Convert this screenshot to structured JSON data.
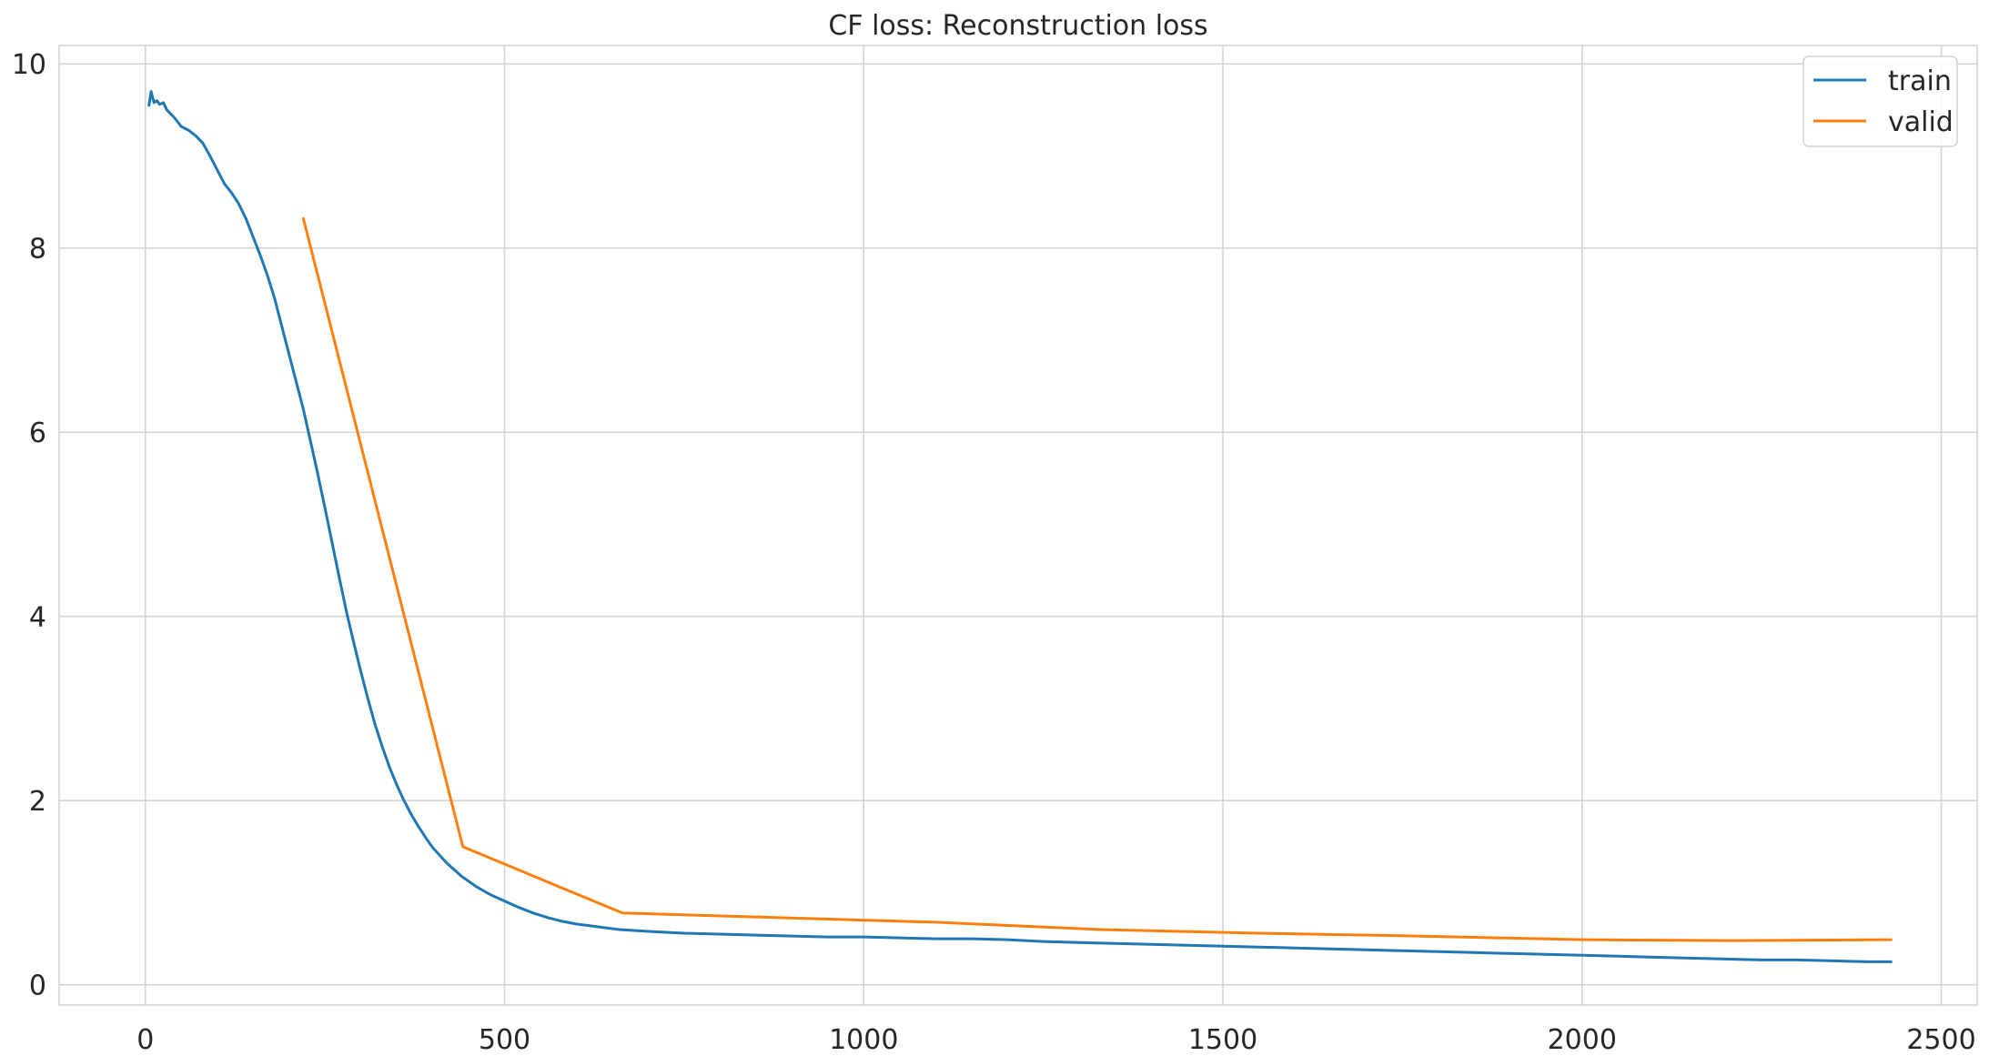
{
  "chart_data": {
    "type": "line",
    "title": "CF loss: Reconstruction loss",
    "xlabel": "",
    "ylabel": "",
    "xlim": [
      -120,
      2550
    ],
    "ylim": [
      -0.22,
      10.2
    ],
    "xticks": [
      0,
      500,
      1000,
      1500,
      2000,
      2500
    ],
    "yticks": [
      0,
      2,
      4,
      6,
      8,
      10
    ],
    "x_tick_labels": [
      "0",
      "500",
      "1000",
      "1500",
      "2000",
      "2500"
    ],
    "y_tick_labels": [
      "0",
      "2",
      "4",
      "6",
      "8",
      "10"
    ],
    "grid": true,
    "legend_position": "top-right",
    "series": [
      {
        "name": "train",
        "color": "#1f77b4",
        "x": [
          5,
          8,
          12,
          16,
          20,
          25,
          30,
          40,
          50,
          60,
          70,
          80,
          90,
          100,
          110,
          120,
          130,
          140,
          150,
          160,
          170,
          180,
          190,
          200,
          210,
          220,
          230,
          240,
          250,
          260,
          270,
          280,
          290,
          300,
          310,
          320,
          330,
          340,
          350,
          360,
          370,
          380,
          390,
          400,
          420,
          440,
          460,
          480,
          500,
          520,
          540,
          560,
          580,
          600,
          620,
          640,
          660,
          680,
          700,
          750,
          800,
          850,
          900,
          950,
          1000,
          1050,
          1100,
          1150,
          1200,
          1250,
          1300,
          1350,
          1400,
          1450,
          1500,
          1550,
          1600,
          1650,
          1700,
          1750,
          1800,
          1850,
          1900,
          1950,
          2000,
          2050,
          2100,
          2150,
          2200,
          2250,
          2300,
          2350,
          2400,
          2430
        ],
        "values": [
          9.55,
          9.7,
          9.58,
          9.6,
          9.56,
          9.58,
          9.5,
          9.42,
          9.32,
          9.28,
          9.22,
          9.14,
          9.0,
          8.85,
          8.7,
          8.6,
          8.48,
          8.32,
          8.12,
          7.92,
          7.7,
          7.45,
          7.15,
          6.85,
          6.55,
          6.25,
          5.9,
          5.55,
          5.18,
          4.8,
          4.42,
          4.05,
          3.72,
          3.4,
          3.1,
          2.82,
          2.58,
          2.36,
          2.17,
          2.0,
          1.85,
          1.72,
          1.6,
          1.49,
          1.32,
          1.18,
          1.07,
          0.98,
          0.91,
          0.84,
          0.78,
          0.73,
          0.69,
          0.66,
          0.64,
          0.62,
          0.6,
          0.59,
          0.58,
          0.56,
          0.55,
          0.54,
          0.53,
          0.52,
          0.52,
          0.51,
          0.5,
          0.5,
          0.49,
          0.47,
          0.46,
          0.45,
          0.44,
          0.43,
          0.42,
          0.41,
          0.4,
          0.39,
          0.38,
          0.37,
          0.36,
          0.35,
          0.34,
          0.33,
          0.32,
          0.31,
          0.3,
          0.29,
          0.28,
          0.27,
          0.27,
          0.26,
          0.25,
          0.25
        ]
      },
      {
        "name": "valid",
        "color": "#ff7f0e",
        "x": [
          220,
          442,
          664,
          1100,
          1330,
          1550,
          1770,
          2000,
          2210,
          2430
        ],
        "values": [
          8.32,
          1.5,
          0.78,
          0.68,
          0.6,
          0.56,
          0.53,
          0.49,
          0.48,
          0.49
        ]
      }
    ]
  }
}
